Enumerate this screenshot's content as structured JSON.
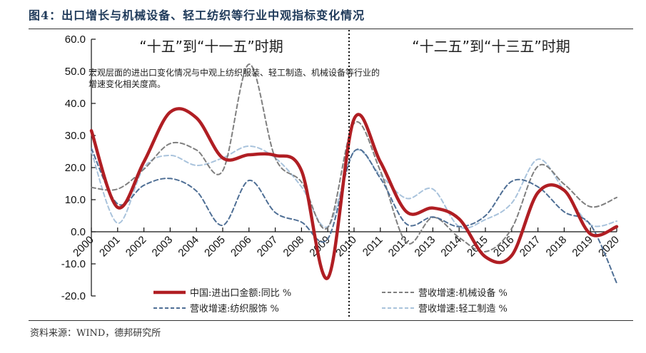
{
  "figure": {
    "title": "图4：出口增长与机械设备、轻工纺织等行业中观指标变化情况",
    "source": "资料来源：WIND，德邦研究所"
  },
  "annotations": {
    "period_left": "“十五”到“十一五”时期",
    "period_right": "“十二五”到“十三五”时期",
    "note_line1": "宏观层面的进出口变化情况与中观上纺织服装、轻工制造、机械设备等行业的",
    "note_line2": "增速变化相关度高。",
    "divider_year": 2010
  },
  "legend": [
    {
      "label": "中国:进出口金额:同比 %",
      "color": "#b01e23",
      "style": "solid"
    },
    {
      "label": "营收增速:机械设备 %",
      "color": "#7f7f7f",
      "style": "dashed"
    },
    {
      "label": "营收增速:纺织服饰 %",
      "color": "#4f6f95",
      "style": "dashed"
    },
    {
      "label": "营收增速:轻工制造 %",
      "color": "#a9c3dc",
      "style": "dashed"
    }
  ],
  "chart_data": {
    "type": "line",
    "title": "出口增长与机械设备、轻工纺织等行业中观指标变化情况",
    "xlabel": "",
    "ylabel": "",
    "ylim": [
      -20,
      60
    ],
    "yticks": [
      "60.0",
      "50.0",
      "40.0",
      "30.0",
      "20.0",
      "10.0",
      "0.0",
      "-10.0",
      "-20.0"
    ],
    "x": [
      "2000",
      "2001",
      "2002",
      "2003",
      "2004",
      "2005",
      "2006",
      "2007",
      "2008",
      "2009",
      "2010",
      "2011",
      "2012",
      "2013",
      "2014",
      "2015",
      "2016",
      "2017",
      "2018",
      "2019",
      "2020"
    ],
    "grid": false,
    "legend_position": "bottom",
    "series": [
      {
        "name": "中国:进出口金额:同比 %",
        "color": "#b01e23",
        "values": [
          31.5,
          7.6,
          21.8,
          37.3,
          35.5,
          23.0,
          24.0,
          23.8,
          19.0,
          -14.4,
          35.1,
          21.8,
          6.2,
          7.4,
          4.0,
          -7.8,
          -7.4,
          12.2,
          12.9,
          -0.7,
          1.6
        ]
      },
      {
        "name": "营收增速:机械设备 %",
        "color": "#7f7f7f",
        "values": [
          13.8,
          13.3,
          19.5,
          27.5,
          25.5,
          19.0,
          52.2,
          23.0,
          15.5,
          1.3,
          33.8,
          19.0,
          -3.4,
          4.5,
          -1.8,
          -6.2,
          1.0,
          20.4,
          14.8,
          7.8,
          10.7
        ]
      },
      {
        "name": "营收增速:纺织服饰 %",
        "color": "#4f6f95",
        "values": [
          26.0,
          8.7,
          14.5,
          16.6,
          12.7,
          2.0,
          16.0,
          6.0,
          3.0,
          -2.2,
          25.0,
          16.7,
          2.4,
          4.6,
          1.6,
          5.0,
          15.7,
          14.0,
          6.2,
          2.2,
          -16.0
        ]
      },
      {
        "name": "营收增速:轻工制造 %",
        "color": "#a9c3dc",
        "values": [
          25.0,
          2.7,
          20.0,
          23.8,
          20.7,
          23.0,
          26.7,
          23.0,
          14.0,
          1.6,
          25.0,
          17.7,
          10.4,
          13.3,
          1.6,
          3.8,
          8.9,
          22.6,
          12.9,
          2.2,
          3.3
        ]
      }
    ]
  }
}
